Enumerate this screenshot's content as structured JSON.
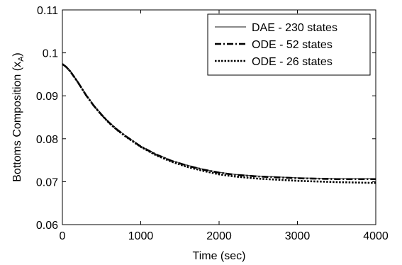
{
  "chart_data": {
    "type": "line",
    "xlabel": "Time (sec)",
    "ylabel": "Bottoms Composition (x",
    "ylabel_sub": "A",
    "ylabel_close": ")",
    "xlim": [
      0,
      4000
    ],
    "ylim": [
      0.06,
      0.11
    ],
    "xticks": [
      0,
      1000,
      2000,
      3000,
      4000
    ],
    "xtick_labels": [
      "0",
      "1000",
      "2000",
      "3000",
      "4000"
    ],
    "yticks": [
      0.06,
      0.07,
      0.08,
      0.09,
      0.1,
      0.11
    ],
    "ytick_labels": [
      "0.06",
      "0.07",
      "0.08",
      "0.09",
      "0.1",
      "0.11"
    ],
    "grid": false,
    "legend_position": "top-right",
    "series": [
      {
        "name": "DAE - 230 states",
        "style": "solid-thin",
        "color": "#444444",
        "x": [
          0,
          50,
          100,
          200,
          300,
          400,
          500,
          600,
          700,
          800,
          1000,
          1200,
          1400,
          1600,
          1800,
          2000,
          2200,
          2500,
          3000,
          3500,
          4000
        ],
        "y": [
          0.0975,
          0.0968,
          0.0958,
          0.0932,
          0.0903,
          0.0878,
          0.0857,
          0.0838,
          0.0822,
          0.0808,
          0.0783,
          0.0764,
          0.0749,
          0.0738,
          0.0729,
          0.0722,
          0.0717,
          0.0713,
          0.0709,
          0.0707,
          0.0707
        ]
      },
      {
        "name": "ODE - 52 states",
        "style": "dash-dot-thick",
        "color": "#000000",
        "x": [
          0,
          50,
          100,
          200,
          300,
          400,
          500,
          600,
          700,
          800,
          1000,
          1200,
          1400,
          1600,
          1800,
          2000,
          2200,
          2500,
          3000,
          3500,
          4000
        ],
        "y": [
          0.0974,
          0.0967,
          0.0957,
          0.0931,
          0.0902,
          0.0877,
          0.0856,
          0.0837,
          0.0821,
          0.0807,
          0.0782,
          0.0763,
          0.0748,
          0.0737,
          0.0728,
          0.0721,
          0.0716,
          0.0712,
          0.0708,
          0.0706,
          0.0706
        ]
      },
      {
        "name": "ODE - 26 states",
        "style": "dotted-thick",
        "color": "#000000",
        "x": [
          0,
          50,
          100,
          200,
          300,
          400,
          500,
          600,
          700,
          800,
          1000,
          1200,
          1400,
          1600,
          1800,
          2000,
          2200,
          2500,
          3000,
          3500,
          4000
        ],
        "y": [
          0.0974,
          0.0967,
          0.0957,
          0.0931,
          0.0902,
          0.0877,
          0.0855,
          0.0836,
          0.082,
          0.0806,
          0.0781,
          0.0761,
          0.0746,
          0.0734,
          0.0725,
          0.0717,
          0.0712,
          0.0707,
          0.0702,
          0.0699,
          0.0697
        ]
      }
    ]
  }
}
